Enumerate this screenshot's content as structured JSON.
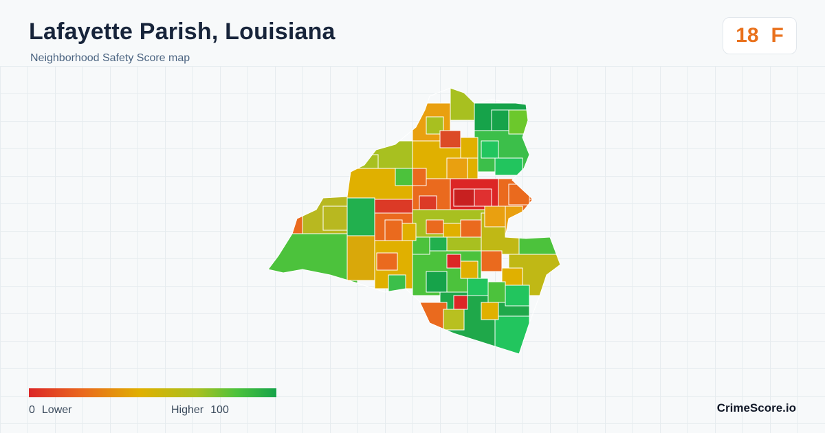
{
  "header": {
    "title": "Lafayette Parish, Louisiana",
    "subtitle": "Neighborhood Safety Score map"
  },
  "grade": {
    "score": "18",
    "letter": "F",
    "color": "#e9711c"
  },
  "legend": {
    "min_value": "0",
    "min_label": "Lower",
    "max_label": "Higher",
    "max_value": "100",
    "colors": [
      "#dc2626",
      "#ea6a1e",
      "#e0b000",
      "#a8c020",
      "#4cc23c",
      "#16a34a"
    ]
  },
  "brand": "CrimeScore.io"
}
